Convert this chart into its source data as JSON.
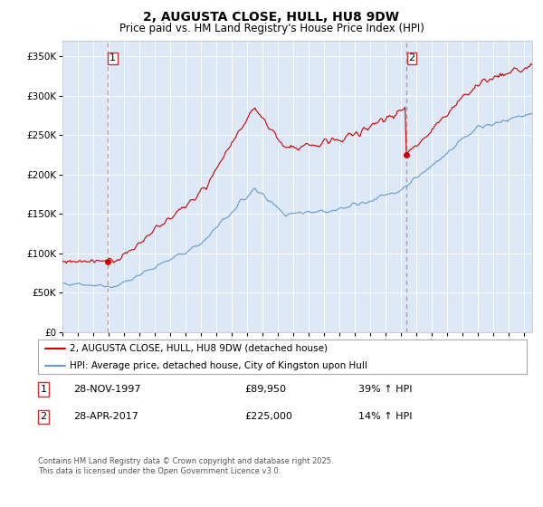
{
  "title1": "2, AUGUSTA CLOSE, HULL, HU8 9DW",
  "title2": "Price paid vs. HM Land Registry's House Price Index (HPI)",
  "ylim": [
    0,
    370000
  ],
  "yticks": [
    0,
    50000,
    100000,
    150000,
    200000,
    250000,
    300000,
    350000
  ],
  "ytick_labels": [
    "£0",
    "£50K",
    "£100K",
    "£150K",
    "£200K",
    "£250K",
    "£300K",
    "£350K"
  ],
  "xlim_start": 1995.0,
  "xlim_end": 2025.5,
  "marker1_x": 1997.91,
  "marker1_y": 89950,
  "marker2_x": 2017.32,
  "marker2_y": 225000,
  "vline1_x": 1997.91,
  "vline2_x": 2017.32,
  "legend_line1": "2, AUGUSTA CLOSE, HULL, HU8 9DW (detached house)",
  "legend_line2": "HPI: Average price, detached house, City of Kingston upon Hull",
  "table_row1": [
    "1",
    "28-NOV-1997",
    "£89,950",
    "39% ↑ HPI"
  ],
  "table_row2": [
    "2",
    "28-APR-2017",
    "£225,000",
    "14% ↑ HPI"
  ],
  "footer": "Contains HM Land Registry data © Crown copyright and database right 2025.\nThis data is licensed under the Open Government Licence v3.0.",
  "red_color": "#cc0000",
  "blue_color": "#6699cc",
  "bg_color": "#ffffff",
  "plot_bg": "#dce8f5"
}
